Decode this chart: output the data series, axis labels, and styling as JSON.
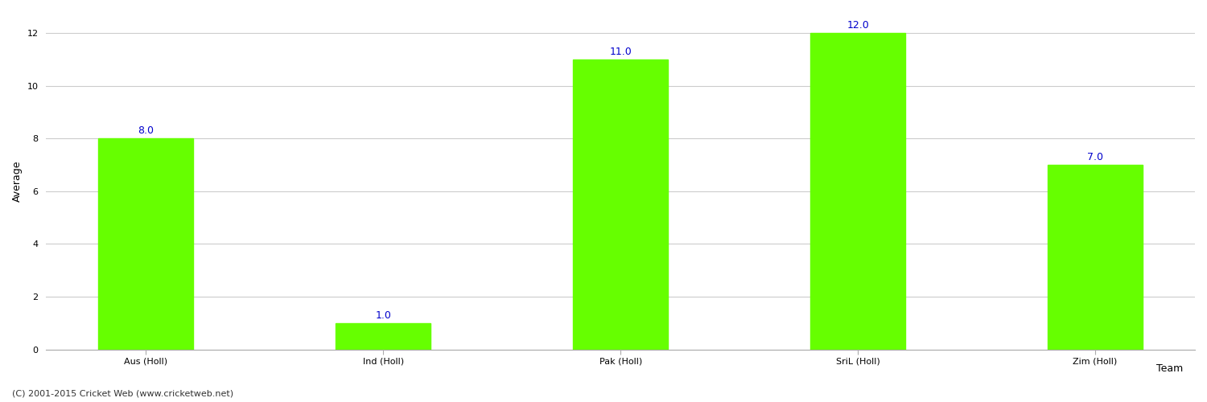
{
  "categories": [
    "Aus (Holl)",
    "Ind (Holl)",
    "Pak (Holl)",
    "SriL (Holl)",
    "Zim (Holl)"
  ],
  "values": [
    8.0,
    1.0,
    11.0,
    12.0,
    7.0
  ],
  "bar_color": "#66ff00",
  "bar_edge_color": "#66ff00",
  "value_label_color": "#0000cc",
  "value_label_fontsize": 9,
  "xlabel": "Team",
  "ylabel": "Average",
  "ylim": [
    0,
    12.8
  ],
  "yticks": [
    0,
    2,
    4,
    6,
    8,
    10,
    12
  ],
  "grid_color": "#cccccc",
  "background_color": "#ffffff",
  "axes_label_fontsize": 9,
  "tick_label_fontsize": 8,
  "bar_width": 0.4,
  "footer_text": "(C) 2001-2015 Cricket Web (www.cricketweb.net)",
  "footer_fontsize": 8,
  "footer_color": "#333333"
}
